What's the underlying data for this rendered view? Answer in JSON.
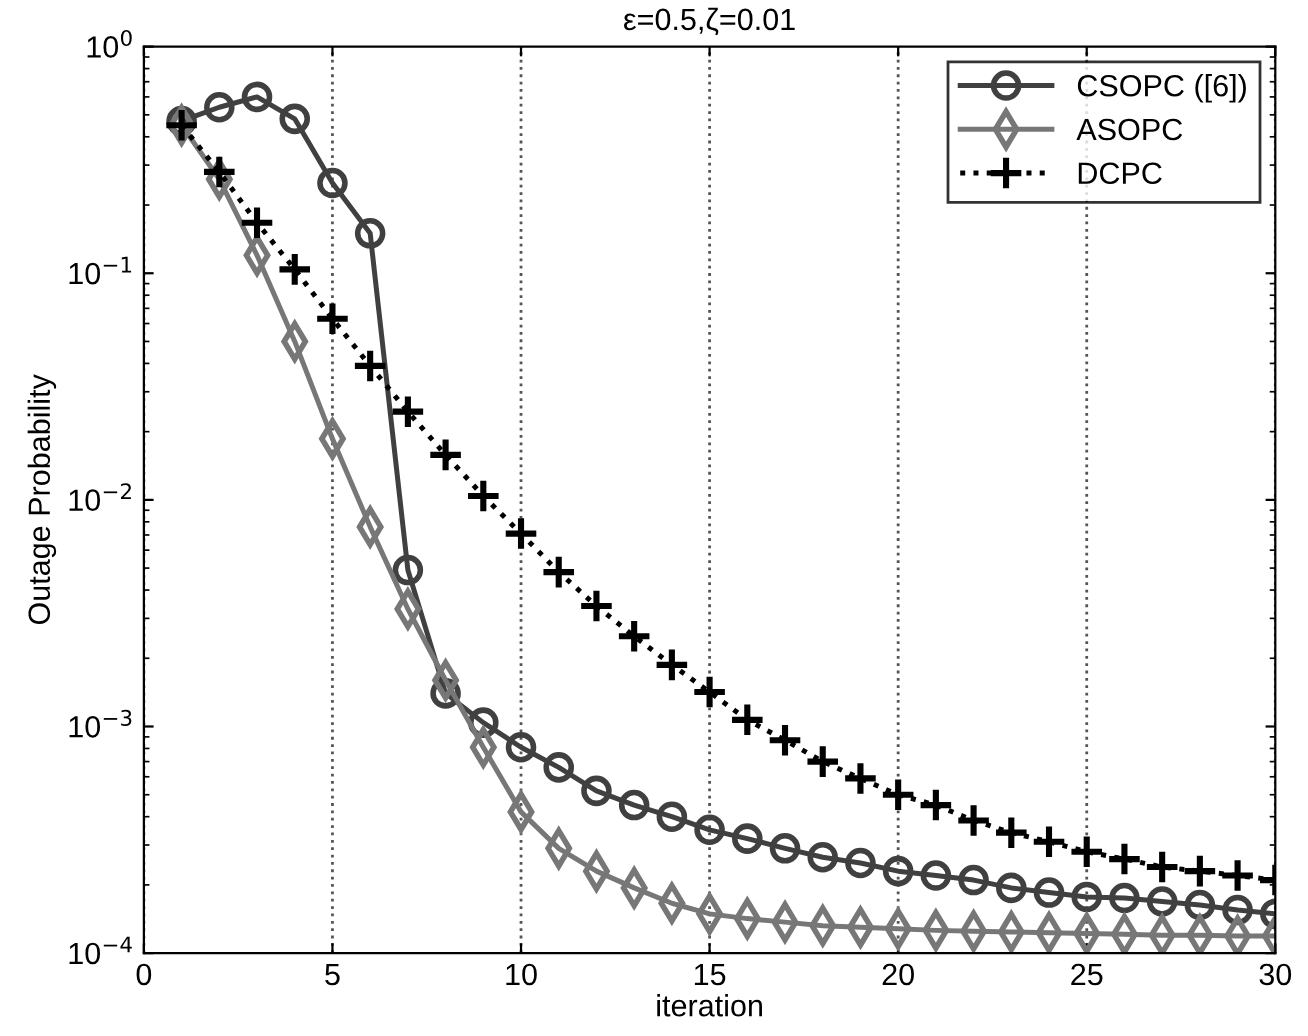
{
  "chart_data": {
    "type": "line",
    "title": "ε=0.5,ζ=0.01",
    "xlabel": "iteration",
    "ylabel": "Outage Probability",
    "x": [
      1,
      2,
      3,
      4,
      5,
      6,
      7,
      8,
      9,
      10,
      11,
      12,
      13,
      14,
      15,
      16,
      17,
      18,
      19,
      20,
      21,
      22,
      23,
      24,
      25,
      26,
      27,
      28,
      29,
      30
    ],
    "series": [
      {
        "name": "CSOPC ([6])",
        "color": "#404040",
        "marker": "circle",
        "line_style": "solid",
        "values": [
          0.47,
          0.54,
          0.6,
          0.48,
          0.25,
          0.15,
          0.0049,
          0.0014,
          0.00104,
          0.00081,
          0.00066,
          0.00052,
          0.00045,
          0.0004,
          0.00035,
          0.00032,
          0.00029,
          0.000265,
          0.00025,
          0.00023,
          0.00022,
          0.00021,
          0.000194,
          0.000185,
          0.000177,
          0.000175,
          0.000169,
          0.000163,
          0.000155,
          0.000149
        ]
      },
      {
        "name": "ASOPC",
        "color": "#777777",
        "marker": "diamond",
        "line_style": "solid",
        "values": [
          0.45,
          0.26,
          0.12,
          0.05,
          0.0186,
          0.0076,
          0.0033,
          0.0016,
          0.00081,
          0.00042,
          0.00029,
          0.00023,
          0.000194,
          0.000166,
          0.000149,
          0.000142,
          0.000137,
          0.000132,
          0.00013,
          0.000128,
          0.000126,
          0.000125,
          0.000124,
          0.000123,
          0.000122,
          0.000121,
          0.00012,
          0.00012,
          0.000119,
          0.000119
        ]
      },
      {
        "name": "DCPC",
        "color": "#000000",
        "marker": "cross",
        "line_style": "dotted",
        "values": [
          0.45,
          0.28,
          0.167,
          0.104,
          0.063,
          0.039,
          0.0245,
          0.0158,
          0.0104,
          0.0071,
          0.0048,
          0.0034,
          0.0025,
          0.00187,
          0.00142,
          0.00107,
          0.00087,
          0.0007,
          0.00059,
          0.0005,
          0.00045,
          0.000385,
          0.00034,
          0.00031,
          0.00028,
          0.00026,
          0.00024,
          0.00023,
          0.00022,
          0.00021
        ]
      }
    ],
    "log": "y",
    "xlim": [
      0,
      30
    ],
    "ylim": [
      0.0001,
      1
    ],
    "xticks": [
      0,
      5,
      10,
      15,
      20,
      25,
      30
    ],
    "yticks": [
      {
        "value": 0.0001,
        "label": "10$^{−4}$"
      },
      {
        "value": 0.001,
        "label": "10$^{−3}$"
      },
      {
        "value": 0.01,
        "label": "10$^{−2}$"
      },
      {
        "value": 0.1,
        "label": "10$^{−1}$"
      },
      {
        "value": 1,
        "label": "10$^{0}$"
      }
    ],
    "grid": "x",
    "legend": "top right"
  }
}
